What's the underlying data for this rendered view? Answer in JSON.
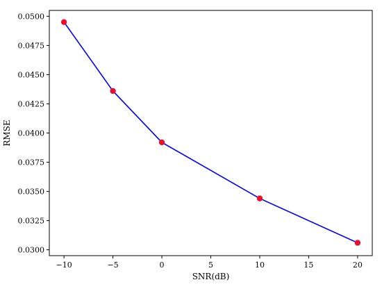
{
  "chart_data": {
    "type": "line",
    "title": "",
    "xlabel": "SNR(dB)",
    "ylabel": "RMSE",
    "xlim": [
      -11.5,
      21.5
    ],
    "ylim": [
      0.0295,
      0.0505
    ],
    "xticks": [
      -10,
      -5,
      0,
      5,
      10,
      15,
      20
    ],
    "xtick_labels": [
      "−10",
      "−5",
      "0",
      "5",
      "10",
      "15",
      "20"
    ],
    "yticks": [
      0.03,
      0.0325,
      0.035,
      0.0375,
      0.04,
      0.0425,
      0.045,
      0.0475,
      0.05
    ],
    "ytick_labels": [
      "0.0300",
      "0.0325",
      "0.0350",
      "0.0375",
      "0.0400",
      "0.0425",
      "0.0450",
      "0.0475",
      "0.0500"
    ],
    "grid": false,
    "series": [
      {
        "x": [
          -10,
          -5,
          0,
          10,
          20
        ],
        "y": [
          0.0495,
          0.0436,
          0.0392,
          0.0344,
          0.0306
        ],
        "line_color": "#0000ff",
        "marker_color": "#e8102a"
      }
    ]
  }
}
